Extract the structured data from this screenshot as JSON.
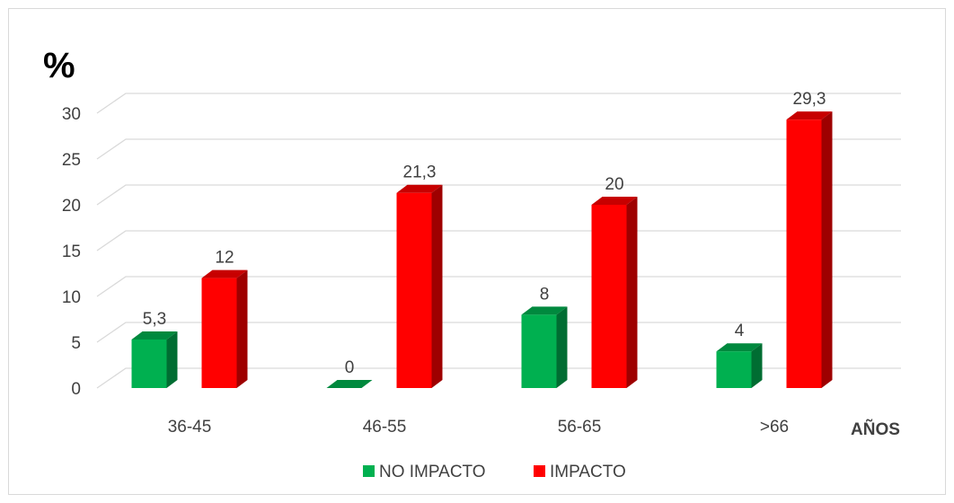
{
  "chart_data": {
    "type": "bar",
    "ylabel": "%",
    "xlabel": "AÑOS",
    "ylim": [
      0,
      30
    ],
    "yticks": [
      0,
      5,
      10,
      15,
      20,
      25,
      30
    ],
    "categories": [
      "36-45",
      "46-55",
      "56-65",
      ">66"
    ],
    "series": [
      {
        "name": "NO IMPACTO",
        "values": [
          5.3,
          0,
          8,
          4
        ],
        "labels": [
          "5,3",
          "0",
          "8",
          "4"
        ],
        "color": "#00b050"
      },
      {
        "name": "IMPACTO",
        "values": [
          12,
          21.3,
          20,
          29.3
        ],
        "labels": [
          "12",
          "21,3",
          "20",
          "29,3"
        ],
        "color": "#ff0000"
      }
    ],
    "grid": true,
    "legend_position": "bottom"
  }
}
